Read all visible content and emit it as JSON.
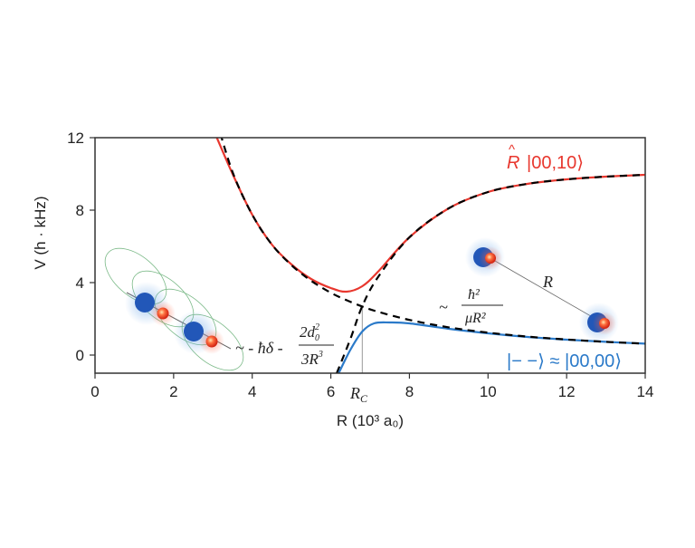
{
  "chart_data": {
    "type": "line",
    "xlabel": "R (10³ a₀)",
    "ylabel": "V (h · kHz)",
    "xlim": [
      0,
      14
    ],
    "ylim": [
      -1,
      12
    ],
    "xticks": [
      0,
      2,
      4,
      6,
      8,
      10,
      12,
      14
    ],
    "yticks": [
      0,
      4,
      8,
      12
    ],
    "grid": false,
    "rc_label": "R",
    "rc_sub": "C",
    "rc_value": 6.8,
    "series": [
      {
        "name": "R̂ |00,10⟩",
        "style": "solid",
        "color": "#e8372e",
        "x": [
          3.1,
          3.5,
          4,
          4.5,
          5,
          5.5,
          6,
          6.4,
          6.8,
          7.2,
          8,
          9,
          10,
          11,
          12,
          13,
          14
        ],
        "y": [
          12,
          10.0,
          7.75,
          6.1,
          5.0,
          4.2,
          3.7,
          3.5,
          3.8,
          4.6,
          6.5,
          8.1,
          9.0,
          9.45,
          9.7,
          9.85,
          9.95
        ]
      },
      {
        "name": "|− −⟩ ≈ |00,00⟩",
        "style": "solid",
        "color": "#2b7ac9",
        "x": [
          6.2,
          6.5,
          6.8,
          7.1,
          7.5,
          8,
          9,
          10,
          11,
          12,
          13,
          14
        ],
        "y": [
          -1,
          0.3,
          1.3,
          1.75,
          1.8,
          1.75,
          1.45,
          1.2,
          1.0,
          0.85,
          0.73,
          0.63
        ]
      },
      {
        "style": "dashed",
        "color": "#000000",
        "x": [
          3.1,
          3.5,
          4,
          4.5,
          5,
          5.5,
          6,
          6.4,
          6.8,
          7.2,
          8,
          9,
          10,
          11,
          12,
          13,
          14
        ],
        "y": [
          12.9,
          10.1,
          7.75,
          6.1,
          4.96,
          4.1,
          3.44,
          3.03,
          2.68,
          2.39,
          1.94,
          1.53,
          1.24,
          1.02,
          0.86,
          0.73,
          0.63
        ]
      },
      {
        "style": "dashed",
        "color": "#000000",
        "x": [
          6.15,
          6.5,
          6.8,
          7.2,
          8,
          9,
          10,
          11,
          12,
          13,
          14
        ],
        "y": [
          -1,
          0.9,
          2.7,
          4.3,
          6.5,
          8.1,
          9.0,
          9.45,
          9.7,
          9.85,
          9.95
        ]
      }
    ],
    "annotations": {
      "attractive": {
        "prefix": "~ - ħδ -",
        "num": "2d",
        "num_sub": "0",
        "num_sup": "2",
        "den": "3R",
        "den_sup": "3"
      },
      "repulsive": {
        "prefix": "~",
        "num": "ħ²",
        "den": "μR²"
      },
      "upper_state": {
        "op": "R",
        "hat": "^",
        "ket": "|00,10⟩"
      },
      "lower_state": "|− −⟩ ≈ |00,00⟩",
      "separation": "R"
    }
  }
}
